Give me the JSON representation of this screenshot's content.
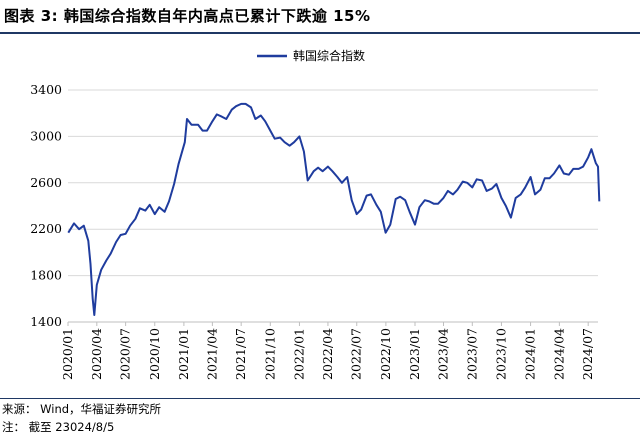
{
  "header": {
    "title": "图表 3:  韩国综合指数自年内高点已累计下跌逾 15%"
  },
  "footer": {
    "source": "来源： Wind，华福证券研究所",
    "note": "注： 截至 23024/8/5"
  },
  "colors": {
    "line": "#1f3c9e",
    "grid": "#d9d9d9",
    "rule": "#1f3864"
  },
  "chart_data": {
    "type": "line",
    "title": "",
    "xlabel": "",
    "ylabel": "",
    "ylim": [
      1400,
      3400
    ],
    "yticks": [
      1400,
      1800,
      2200,
      2600,
      3000,
      3400
    ],
    "grid": "horizontal",
    "legend": "top-center",
    "x_tick_labels": [
      "2020/01",
      "2020/04",
      "2020/07",
      "2020/10",
      "2021/01",
      "2021/04",
      "2021/07",
      "2021/10",
      "2022/01",
      "2022/04",
      "2022/07",
      "2022/10",
      "2023/01",
      "2023/04",
      "2023/07",
      "2023/10",
      "2024/01",
      "2024/04",
      "2024/07"
    ],
    "x_range": [
      "2020/01",
      "2024/08"
    ],
    "series": [
      {
        "name": "韩国综合指数",
        "x": [
          "2020/01/02",
          "2020/01/20",
          "2020/02/05",
          "2020/02/20",
          "2020/03/05",
          "2020/03/12",
          "2020/03/19",
          "2020/03/24",
          "2020/04/01",
          "2020/04/15",
          "2020/05/01",
          "2020/05/15",
          "2020/06/01",
          "2020/06/15",
          "2020/07/01",
          "2020/07/15",
          "2020/08/01",
          "2020/08/15",
          "2020/09/01",
          "2020/09/15",
          "2020/10/01",
          "2020/10/15",
          "2020/11/01",
          "2020/11/15",
          "2020/12/01",
          "2020/12/15",
          "2021/01/04",
          "2021/01/11",
          "2021/01/25",
          "2021/02/15",
          "2021/03/01",
          "2021/03/15",
          "2021/04/01",
          "2021/04/15",
          "2021/05/01",
          "2021/05/15",
          "2021/06/01",
          "2021/06/15",
          "2021/07/01",
          "2021/07/15",
          "2021/08/01",
          "2021/08/15",
          "2021/09/01",
          "2021/09/15",
          "2021/10/01",
          "2021/10/15",
          "2021/11/01",
          "2021/11/15",
          "2021/12/01",
          "2021/12/15",
          "2022/01/01",
          "2022/01/15",
          "2022/01/27",
          "2022/02/15",
          "2022/03/01",
          "2022/03/15",
          "2022/04/01",
          "2022/04/15",
          "2022/05/01",
          "2022/05/15",
          "2022/06/01",
          "2022/06/15",
          "2022/07/01",
          "2022/07/15",
          "2022/08/01",
          "2022/08/15",
          "2022/09/01",
          "2022/09/15",
          "2022/09/30",
          "2022/10/15",
          "2022/11/01",
          "2022/11/15",
          "2022/12/01",
          "2022/12/15",
          "2023/01/01",
          "2023/01/15",
          "2023/02/01",
          "2023/02/15",
          "2023/03/01",
          "2023/03/15",
          "2023/04/01",
          "2023/04/15",
          "2023/05/01",
          "2023/05/15",
          "2023/06/01",
          "2023/06/15",
          "2023/07/01",
          "2023/07/15",
          "2023/08/01",
          "2023/08/15",
          "2023/09/01",
          "2023/09/15",
          "2023/10/01",
          "2023/10/15",
          "2023/10/31",
          "2023/11/15",
          "2023/12/01",
          "2023/12/15",
          "2024/01/01",
          "2024/01/15",
          "2024/02/01",
          "2024/02/15",
          "2024/03/01",
          "2024/03/15",
          "2024/04/01",
          "2024/04/15",
          "2024/05/01",
          "2024/05/15",
          "2024/06/01",
          "2024/06/15",
          "2024/07/01",
          "2024/07/11",
          "2024/07/25",
          "2024/08/01",
          "2024/08/05"
        ],
        "values": [
          2170,
          2250,
          2200,
          2230,
          2100,
          1900,
          1600,
          1460,
          1720,
          1850,
          1930,
          1990,
          2090,
          2150,
          2160,
          2230,
          2290,
          2380,
          2360,
          2410,
          2330,
          2390,
          2350,
          2440,
          2590,
          2760,
          2950,
          3150,
          3100,
          3100,
          3050,
          3050,
          3130,
          3190,
          3170,
          3150,
          3230,
          3260,
          3280,
          3280,
          3250,
          3150,
          3180,
          3130,
          3050,
          2980,
          2990,
          2950,
          2920,
          2950,
          3000,
          2870,
          2620,
          2700,
          2730,
          2700,
          2740,
          2700,
          2650,
          2600,
          2650,
          2450,
          2330,
          2370,
          2490,
          2500,
          2410,
          2350,
          2170,
          2240,
          2460,
          2480,
          2450,
          2350,
          2240,
          2390,
          2450,
          2440,
          2420,
          2420,
          2470,
          2530,
          2500,
          2540,
          2610,
          2600,
          2560,
          2630,
          2620,
          2530,
          2550,
          2590,
          2470,
          2400,
          2300,
          2470,
          2500,
          2560,
          2650,
          2500,
          2540,
          2640,
          2640,
          2680,
          2750,
          2680,
          2670,
          2720,
          2720,
          2740,
          2820,
          2890,
          2770,
          2740,
          2440
        ]
      }
    ]
  }
}
